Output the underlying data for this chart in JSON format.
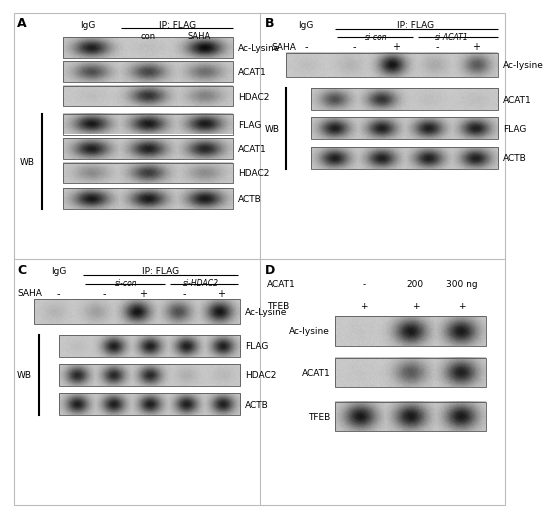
{
  "bg_color": "#ffffff",
  "panel_sep_color": "#aaaaaa",
  "blot_border_color": "#666666",
  "blot_bg": "#e0e0e0",
  "text_color": "#000000",
  "panels": {
    "A": {
      "label": "A",
      "igG_label": "IgG",
      "ip_label": "IP: FLAG",
      "col2": "con",
      "col3": "SAHA",
      "ip_blots": [
        "Ac-Lysine",
        "ACAT1",
        "HDAC2"
      ],
      "wb_blots": [
        "FLAG",
        "ACAT1",
        "HDAC2",
        "ACTB"
      ],
      "wb_label": "WB"
    },
    "B": {
      "label": "B",
      "igG_label": "IgG",
      "ip_label": "IP: FLAG",
      "grp1": "si-con",
      "grp2": "si-ACAT1",
      "saha_vals": [
        "-",
        "-",
        "+",
        "-",
        "+"
      ],
      "ip_blots": [
        "Ac-lysine"
      ],
      "wb_blots": [
        "ACAT1",
        "FLAG",
        "ACTB"
      ],
      "wb_label": "WB"
    },
    "C": {
      "label": "C",
      "igG_label": "IgG",
      "ip_label": "IP: FLAG",
      "grp1": "si-con",
      "grp2": "si-HDAC2",
      "saha_vals": [
        "-",
        "-",
        "+",
        "-",
        "+"
      ],
      "ip_blots": [
        "Ac-Lysine"
      ],
      "wb_blots": [
        "FLAG",
        "HDAC2",
        "ACTB"
      ],
      "wb_label": "WB"
    },
    "D": {
      "label": "D",
      "row1_label": "ACAT1",
      "row1_vals": [
        "-",
        "200",
        "300 ng"
      ],
      "row2_label": "TFEB",
      "row2_vals": [
        "+",
        "+",
        "+"
      ],
      "blots": [
        "Ac-lysine",
        "ACAT1",
        "TFEB"
      ]
    }
  }
}
